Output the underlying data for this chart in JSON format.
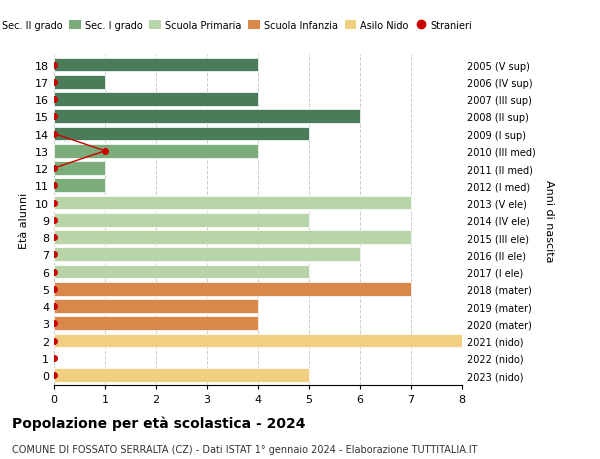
{
  "ages": [
    18,
    17,
    16,
    15,
    14,
    13,
    12,
    11,
    10,
    9,
    8,
    7,
    6,
    5,
    4,
    3,
    2,
    1,
    0
  ],
  "right_labels": [
    "2005 (V sup)",
    "2006 (IV sup)",
    "2007 (III sup)",
    "2008 (II sup)",
    "2009 (I sup)",
    "2010 (III med)",
    "2011 (II med)",
    "2012 (I med)",
    "2013 (V ele)",
    "2014 (IV ele)",
    "2015 (III ele)",
    "2016 (II ele)",
    "2017 (I ele)",
    "2018 (mater)",
    "2019 (mater)",
    "2020 (mater)",
    "2021 (nido)",
    "2022 (nido)",
    "2023 (nido)"
  ],
  "bar_values": [
    4,
    1,
    4,
    6,
    5,
    4,
    1,
    1,
    7,
    5,
    7,
    6,
    5,
    7,
    4,
    4,
    8,
    0,
    5
  ],
  "bar_colors": [
    "#4a7c59",
    "#4a7c59",
    "#4a7c59",
    "#4a7c59",
    "#4a7c59",
    "#7aad7a",
    "#7aad7a",
    "#7aad7a",
    "#b8d4a8",
    "#b8d4a8",
    "#b8d4a8",
    "#b8d4a8",
    "#b8d4a8",
    "#d9874a",
    "#d9874a",
    "#d9874a",
    "#f0d080",
    "#f0d080",
    "#f0d080"
  ],
  "stranieri_line_x": [
    0,
    1,
    0
  ],
  "stranieri_line_y": [
    14,
    13,
    12
  ],
  "stranieri_dot_ages": [
    18,
    17,
    16,
    15,
    14,
    13,
    12,
    11,
    10,
    9,
    8,
    7,
    6,
    5,
    4,
    3,
    2,
    1,
    0
  ],
  "stranieri_dot_vals": [
    0,
    0,
    0,
    0,
    0,
    1,
    0,
    0,
    0,
    0,
    0,
    0,
    0,
    0,
    0,
    0,
    0,
    0,
    0
  ],
  "stranieri_color": "#cc0000",
  "legend_labels": [
    "Sec. II grado",
    "Sec. I grado",
    "Scuola Primaria",
    "Scuola Infanzia",
    "Asilo Nido",
    "Stranieri"
  ],
  "legend_colors": [
    "#4a7c59",
    "#7aad7a",
    "#b8d4a8",
    "#d9874a",
    "#f0d080",
    "#cc0000"
  ],
  "ylabel_left": "Età alunni",
  "ylabel_right": "Anni di nascita",
  "title": "Popolazione per età scolastica - 2024",
  "subtitle": "COMUNE DI FOSSATO SERRALTA (CZ) - Dati ISTAT 1° gennaio 2024 - Elaborazione TUTTITALIA.IT",
  "xlim": [
    0,
    8
  ],
  "ylim": [
    -0.6,
    18.6
  ],
  "bar_height": 0.8,
  "bg_color": "#ffffff",
  "grid_color": "#cccccc"
}
